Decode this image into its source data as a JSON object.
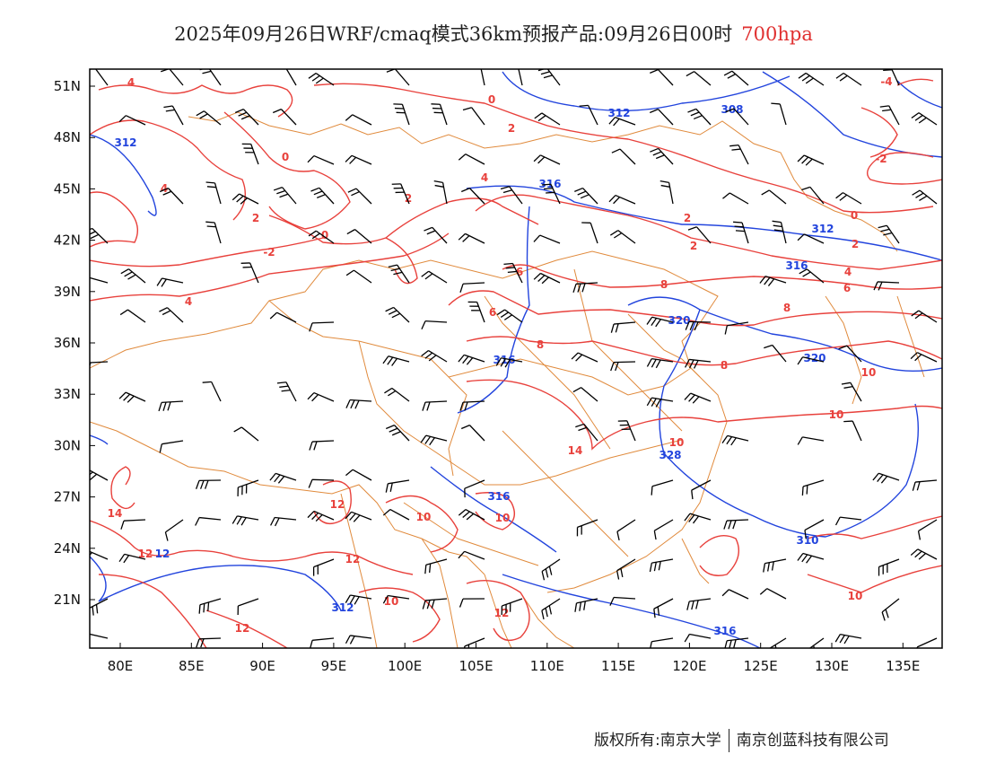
{
  "title": {
    "text": "2025年09月26日WRF/cmaq模式36km预报产品:09月26日00时",
    "level": "700hpa"
  },
  "axes": {
    "lon_ticks": [
      "80E",
      "85E",
      "90E",
      "95E",
      "100E",
      "105E",
      "110E",
      "115E",
      "120E",
      "125E",
      "130E",
      "135E"
    ],
    "lat_ticks": [
      "51N",
      "48N",
      "45N",
      "42N",
      "39N",
      "36N",
      "33N",
      "30N",
      "27N",
      "24N",
      "21N"
    ]
  },
  "colors": {
    "temp": "#e8413c",
    "height": "#2244dd",
    "border": "#e08a3c",
    "barb": "#000000"
  },
  "temp_labels": [
    "4",
    "0",
    "2",
    "0",
    "4",
    "2",
    "-4",
    "-2",
    "2",
    "0",
    "2",
    "0",
    "4",
    "2",
    "-2",
    "2",
    "4",
    "6",
    "4",
    "6",
    "8",
    "6",
    "8",
    "8",
    "8",
    "10",
    "10",
    "10",
    "14",
    "14",
    "12",
    "12",
    "12",
    "10",
    "10",
    "10",
    "10",
    "12",
    "12"
  ],
  "height_labels": [
    "312",
    "312",
    "308",
    "316",
    "312",
    "316",
    "320",
    "316",
    "320",
    "328",
    "316",
    "310",
    "312",
    "316",
    "12"
  ],
  "credit": {
    "owner": "版权所有:南京大学",
    "company": "南京创蓝科技有限公司"
  }
}
